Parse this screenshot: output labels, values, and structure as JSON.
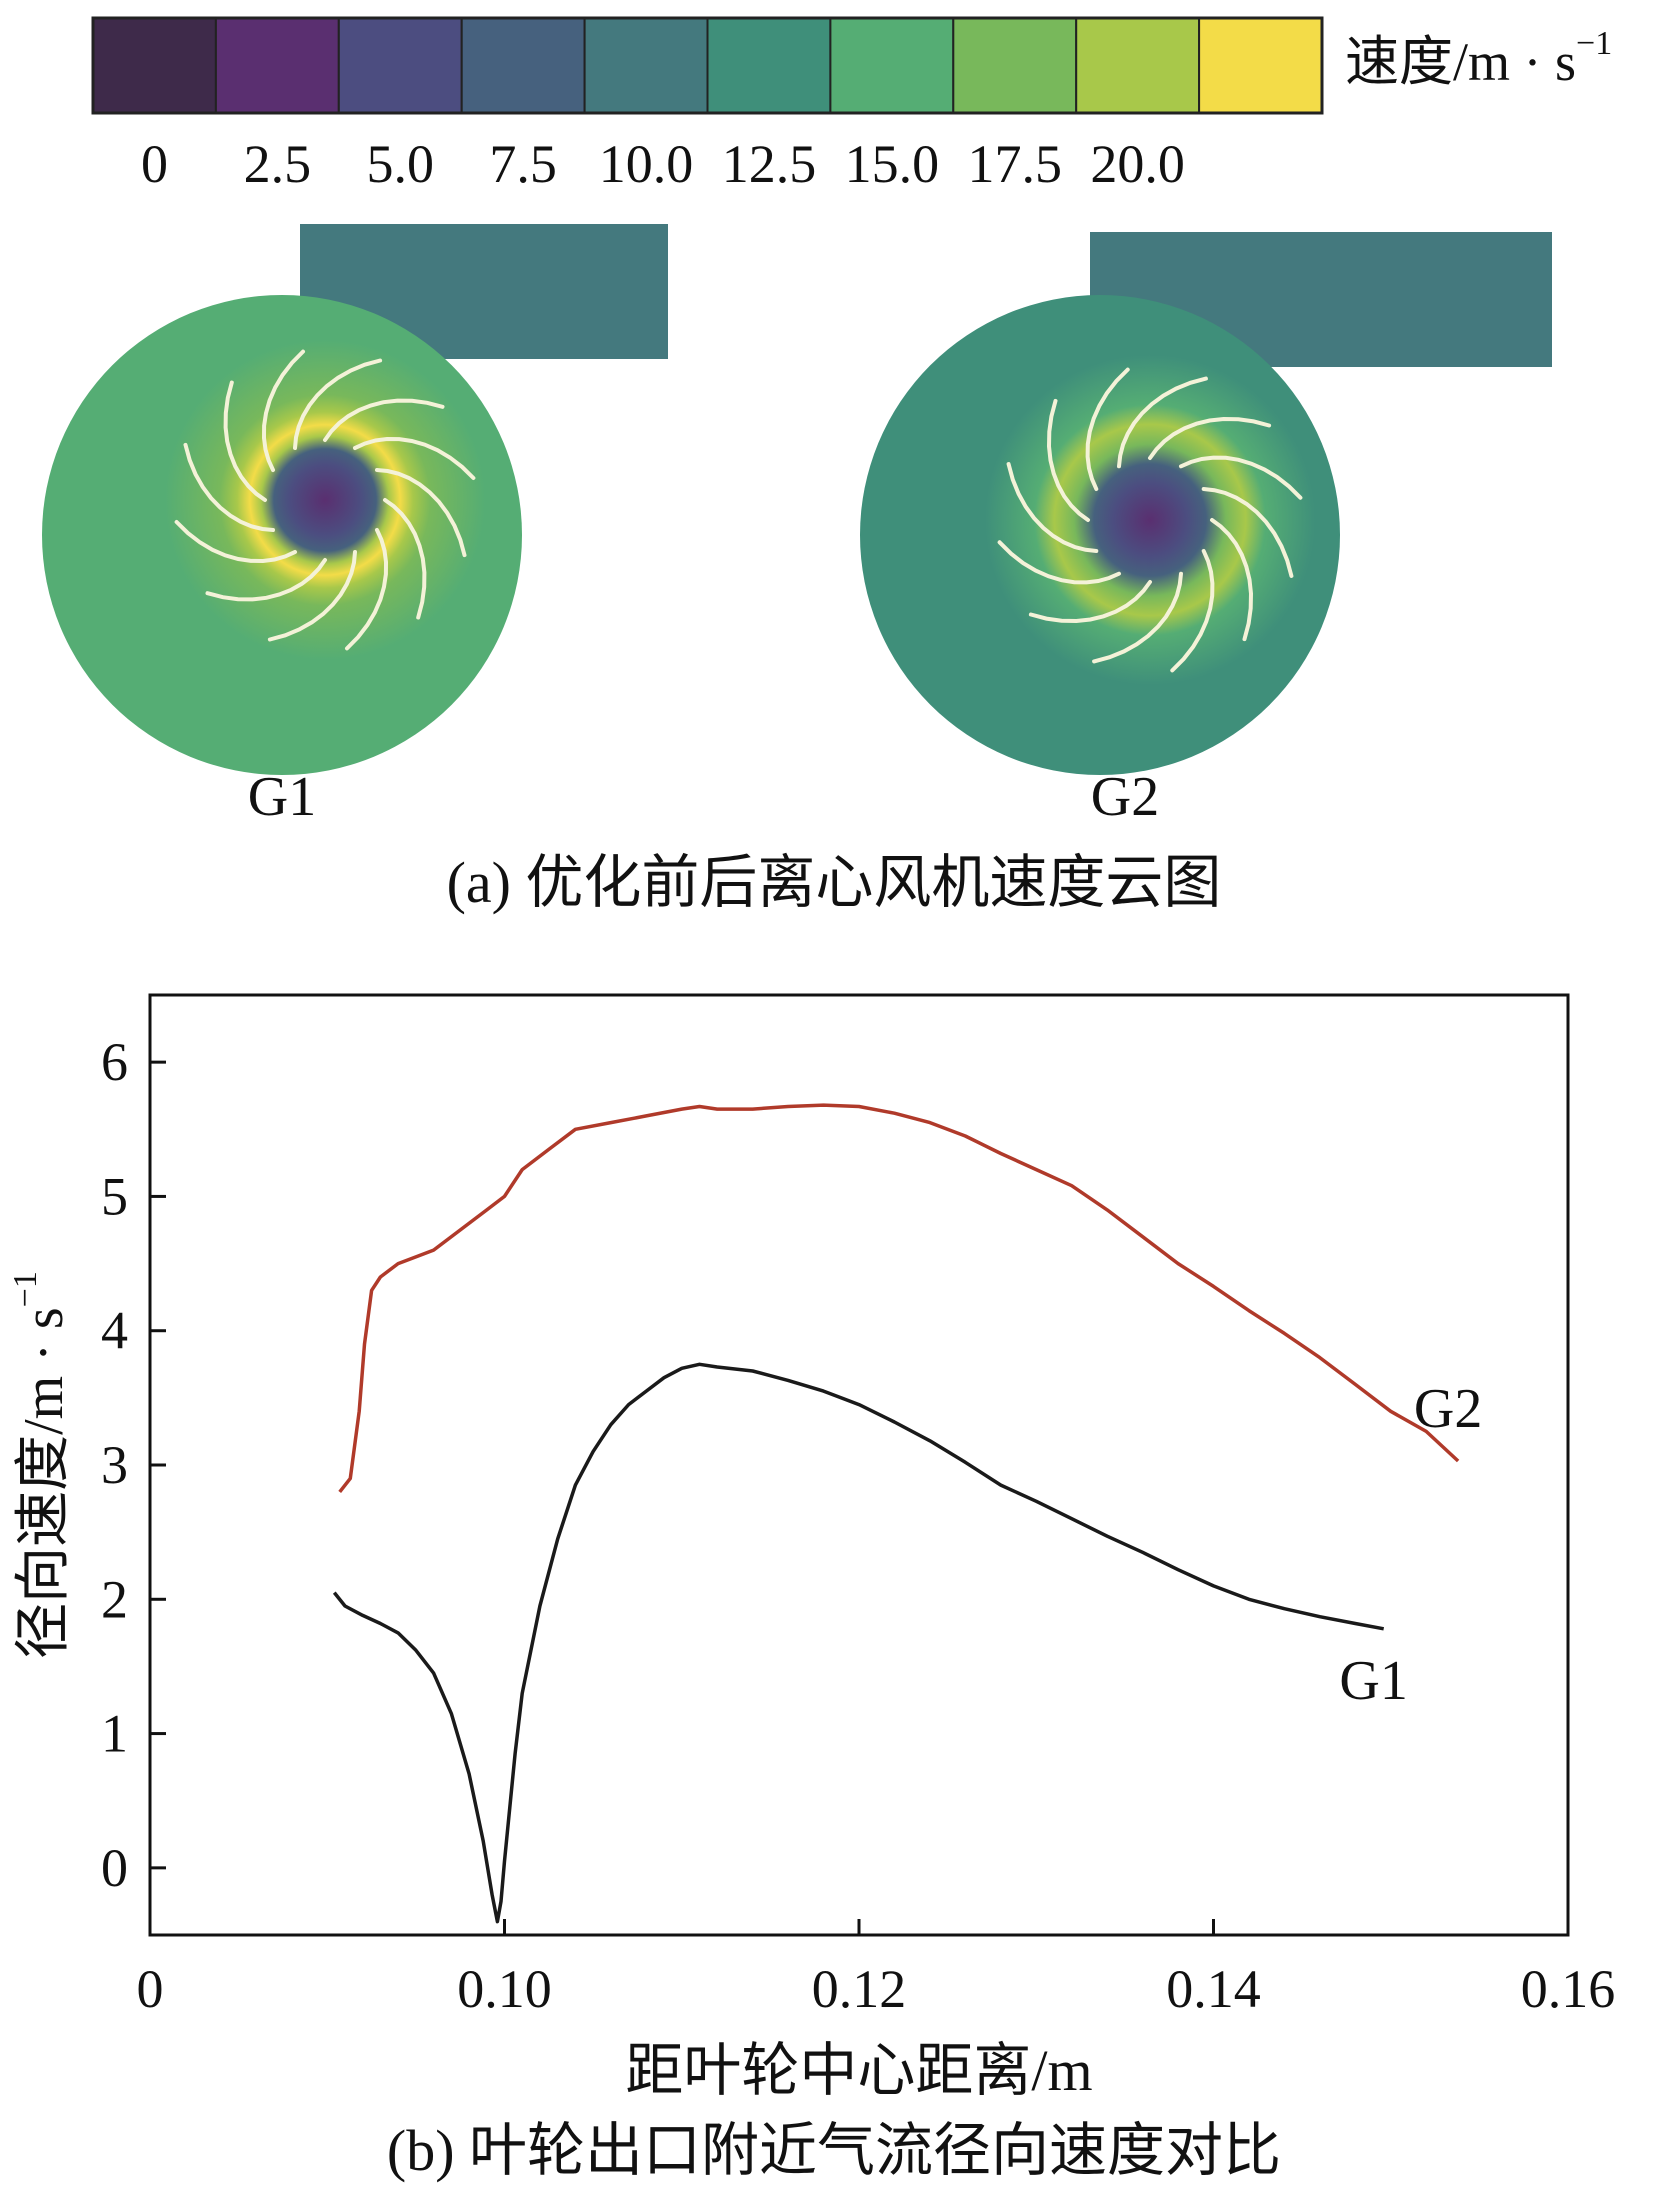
{
  "colorbar": {
    "unit_label": "速度/m · s",
    "unit_exp": "−1",
    "ticks": [
      "0",
      "2.5",
      "5.0",
      "7.5",
      "10.0",
      "12.5",
      "15.0",
      "17.5",
      "20.0"
    ],
    "colors": [
      "#3e2a4a",
      "#5a2f70",
      "#4c4d80",
      "#46617e",
      "#44797e",
      "#3f8f7a",
      "#55ad74",
      "#78b85b",
      "#a8c84a",
      "#f3dc48"
    ]
  },
  "panel_a": {
    "fan_labels": [
      "G1",
      "G2"
    ],
    "caption": "(a) 优化前后离心风机速度云图"
  },
  "chart_data": {
    "type": "line",
    "title": "",
    "xlabel": "距叶轮中心距离/m",
    "ylabel": "径向速度/m · s",
    "ylabel_exp": "−1",
    "xlim": [
      0.08,
      0.16
    ],
    "ylim": [
      -0.5,
      6.5
    ],
    "x_ticks": [
      0.08,
      0.1,
      0.12,
      0.14,
      0.16
    ],
    "x_tick_labels": [
      "0",
      "0.10",
      "0.12",
      "0.14",
      "0.16"
    ],
    "y_ticks": [
      0,
      1,
      2,
      3,
      4,
      5,
      6
    ],
    "y_tick_labels": [
      "0",
      "1",
      "2",
      "3",
      "4",
      "5",
      "6"
    ],
    "series": [
      {
        "name": "G2",
        "color": "#b03a2a",
        "x": [
          0.0907,
          0.0913,
          0.0918,
          0.0921,
          0.0925,
          0.093,
          0.094,
          0.095,
          0.096,
          0.0975,
          0.099,
          0.1,
          0.101,
          0.1025,
          0.104,
          0.106,
          0.108,
          0.11,
          0.111,
          0.112,
          0.114,
          0.116,
          0.118,
          0.12,
          0.122,
          0.124,
          0.126,
          0.128,
          0.13,
          0.132,
          0.134,
          0.136,
          0.138,
          0.14,
          0.142,
          0.144,
          0.146,
          0.148,
          0.15,
          0.152,
          0.1538
        ],
        "values": [
          2.8,
          2.9,
          3.4,
          3.9,
          4.3,
          4.4,
          4.5,
          4.55,
          4.6,
          4.75,
          4.9,
          5.0,
          5.2,
          5.35,
          5.5,
          5.55,
          5.6,
          5.65,
          5.67,
          5.65,
          5.65,
          5.67,
          5.68,
          5.67,
          5.62,
          5.55,
          5.45,
          5.32,
          5.2,
          5.08,
          4.9,
          4.7,
          4.5,
          4.33,
          4.15,
          3.98,
          3.8,
          3.6,
          3.4,
          3.25,
          3.03
        ]
      },
      {
        "name": "G1",
        "color": "#1a1a1a",
        "x": [
          0.0904,
          0.091,
          0.092,
          0.093,
          0.094,
          0.095,
          0.096,
          0.097,
          0.098,
          0.0988,
          0.0993,
          0.0996,
          0.0998,
          0.1,
          0.1003,
          0.1006,
          0.101,
          0.102,
          0.103,
          0.104,
          0.105,
          0.106,
          0.107,
          0.108,
          0.109,
          0.11,
          0.111,
          0.112,
          0.114,
          0.116,
          0.118,
          0.12,
          0.122,
          0.124,
          0.126,
          0.128,
          0.13,
          0.132,
          0.134,
          0.136,
          0.138,
          0.14,
          0.142,
          0.144,
          0.146,
          0.148,
          0.1496
        ],
        "values": [
          2.05,
          1.95,
          1.88,
          1.82,
          1.75,
          1.62,
          1.45,
          1.15,
          0.7,
          0.2,
          -0.2,
          -0.4,
          -0.25,
          0.05,
          0.45,
          0.85,
          1.3,
          1.95,
          2.45,
          2.85,
          3.1,
          3.3,
          3.45,
          3.55,
          3.65,
          3.72,
          3.75,
          3.73,
          3.7,
          3.63,
          3.55,
          3.45,
          3.32,
          3.18,
          3.02,
          2.85,
          2.73,
          2.6,
          2.47,
          2.35,
          2.22,
          2.1,
          2.0,
          1.93,
          1.87,
          1.82,
          1.78
        ]
      }
    ],
    "annotations": [
      {
        "text": "G2",
        "series": "G2"
      },
      {
        "text": "G1",
        "series": "G1"
      }
    ],
    "caption": "(b) 叶轮出口附近气流径向速度对比"
  }
}
